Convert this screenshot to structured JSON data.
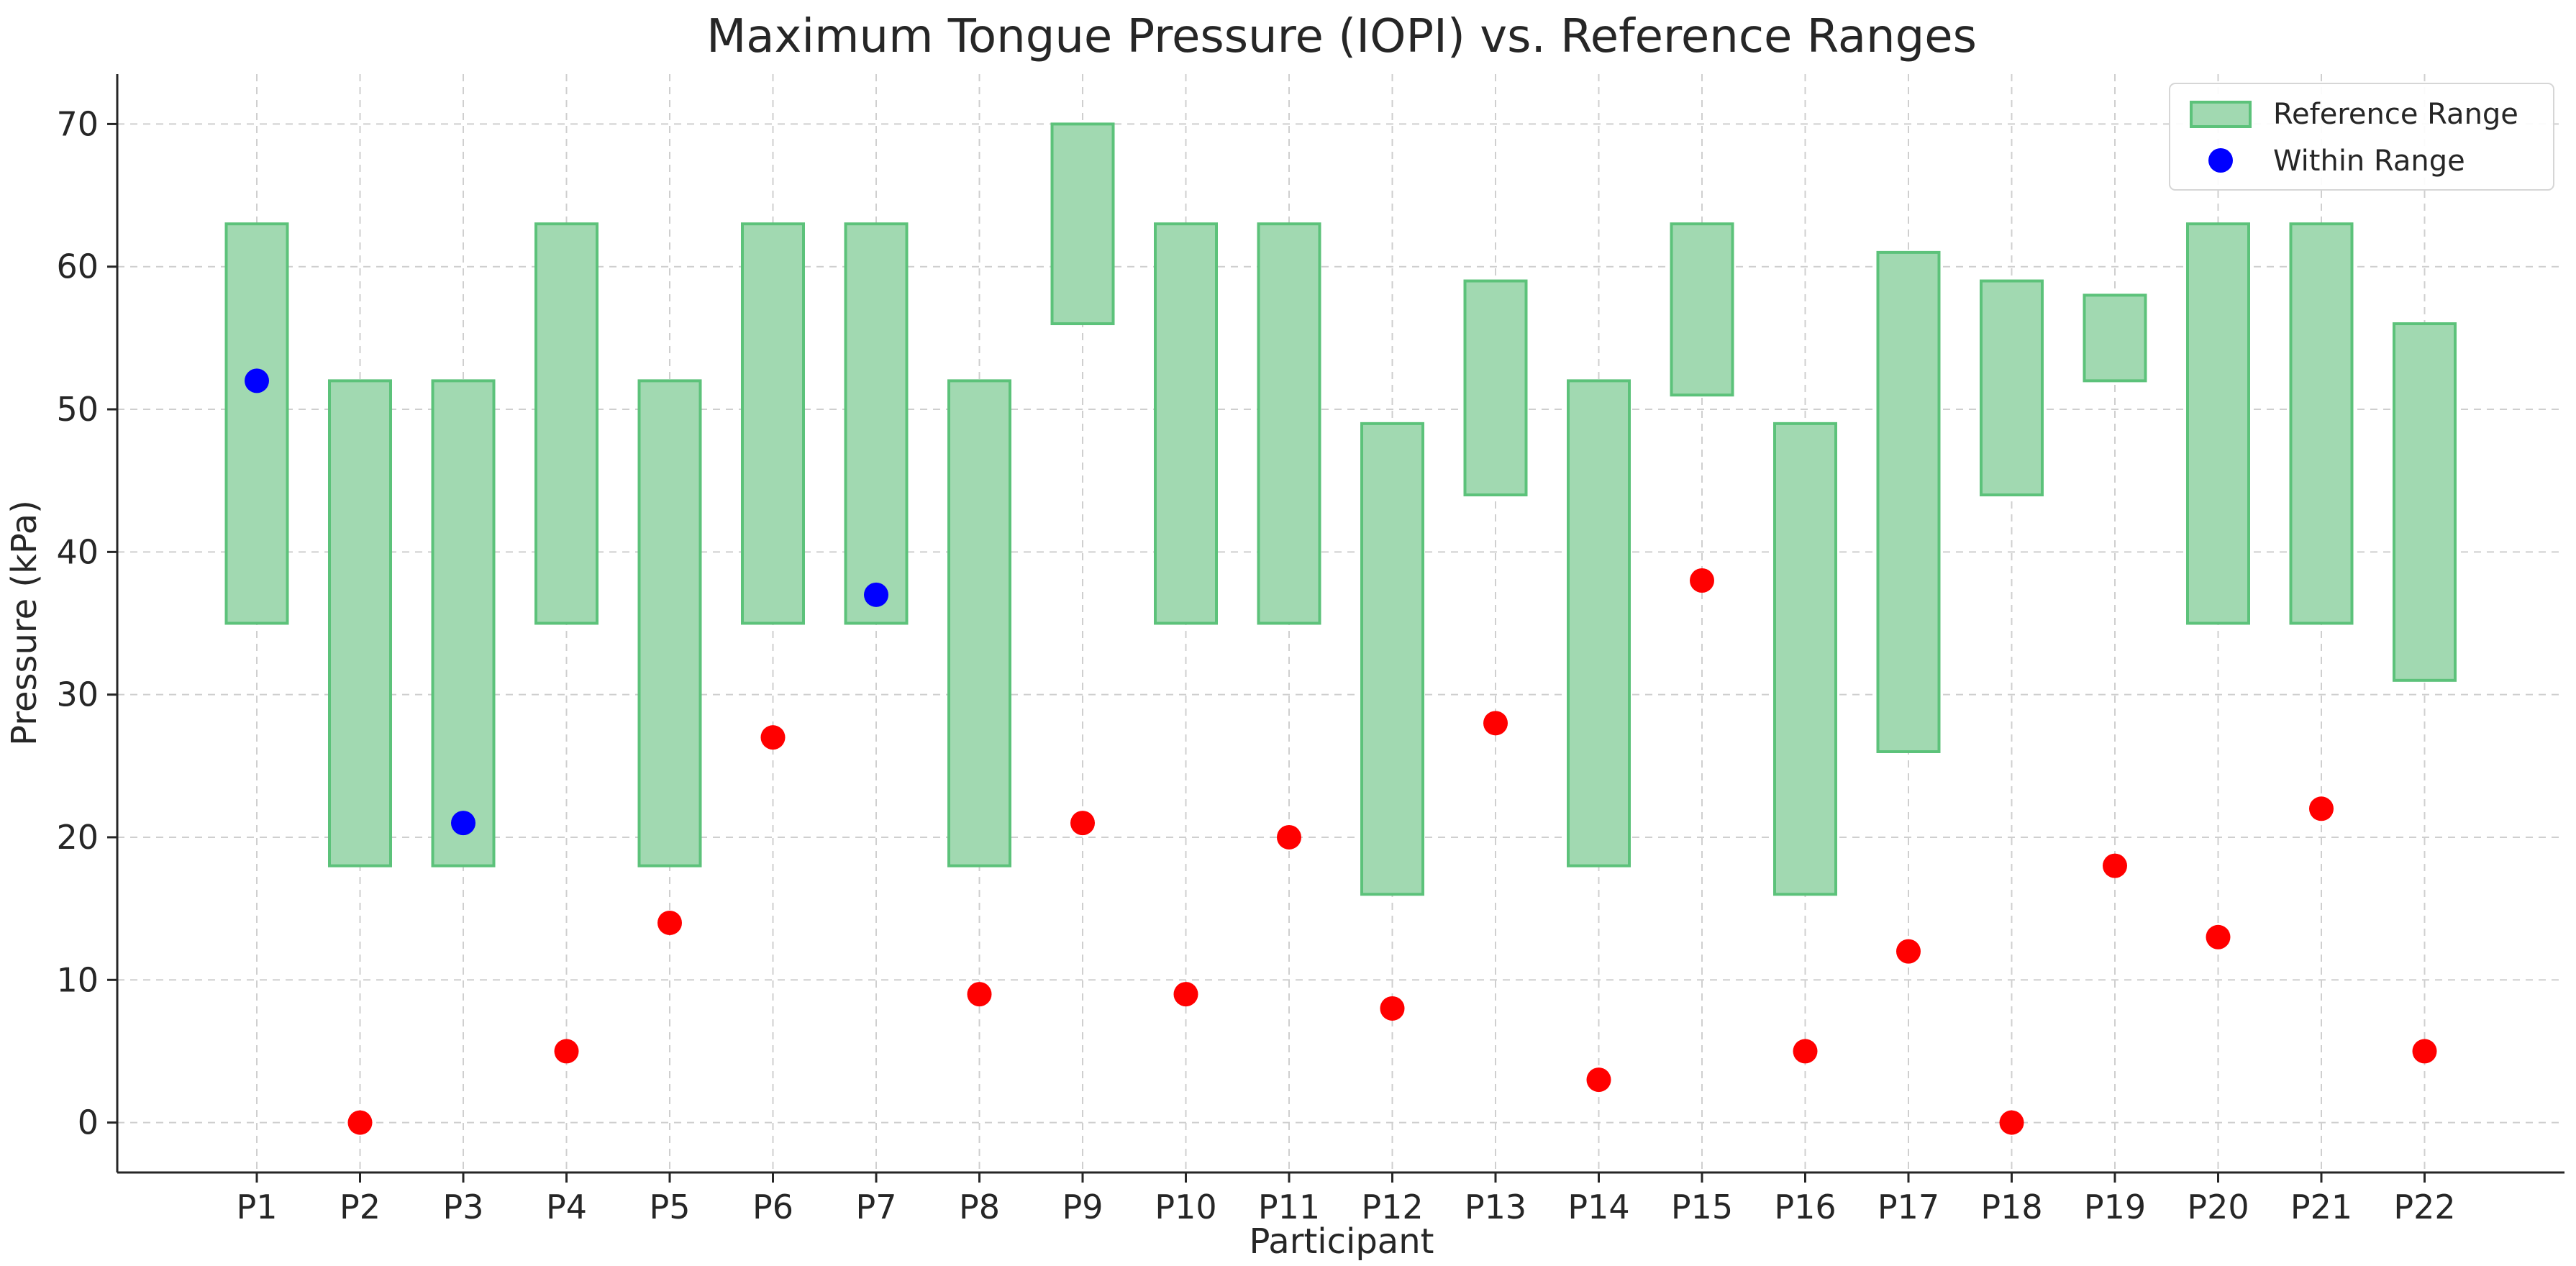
{
  "chart_data": {
    "type": "scatter",
    "title": "Maximum Tongue Pressure (IOPI) vs. Reference Ranges",
    "xlabel": "Participant",
    "ylabel": "Pressure (kPa)",
    "ylim": [
      -3.5,
      73.5
    ],
    "yticks": [
      0,
      10,
      20,
      30,
      40,
      50,
      60,
      70
    ],
    "grid": true,
    "legend_position": "top-right",
    "legend": [
      "Reference Range",
      "Within Range"
    ],
    "categories": [
      "P1",
      "P2",
      "P3",
      "P4",
      "P5",
      "P6",
      "P7",
      "P8",
      "P9",
      "P10",
      "P11",
      "P12",
      "P13",
      "P14",
      "P15",
      "P16",
      "P17",
      "P18",
      "P19",
      "P20",
      "P21",
      "P22"
    ],
    "reference_ranges": [
      [
        35,
        63
      ],
      [
        18,
        52
      ],
      [
        18,
        52
      ],
      [
        35,
        63
      ],
      [
        18,
        52
      ],
      [
        35,
        63
      ],
      [
        35,
        63
      ],
      [
        18,
        52
      ],
      [
        56,
        70
      ],
      [
        35,
        63
      ],
      [
        35,
        63
      ],
      [
        16,
        49
      ],
      [
        44,
        59
      ],
      [
        18,
        52
      ],
      [
        51,
        63
      ],
      [
        16,
        49
      ],
      [
        26,
        61
      ],
      [
        44,
        59
      ],
      [
        52,
        58
      ],
      [
        35,
        63
      ],
      [
        35,
        63
      ],
      [
        31,
        56
      ]
    ],
    "values": [
      52,
      0,
      21,
      5,
      14,
      27,
      37,
      9,
      21,
      9,
      20,
      8,
      28,
      3,
      38,
      5,
      12,
      0,
      18,
      13,
      22,
      5
    ],
    "colors": {
      "range_fill": "#a1d9b1",
      "range_edge": "#5cc27a",
      "within": "#0000ff",
      "outside": "#ff0000"
    }
  }
}
